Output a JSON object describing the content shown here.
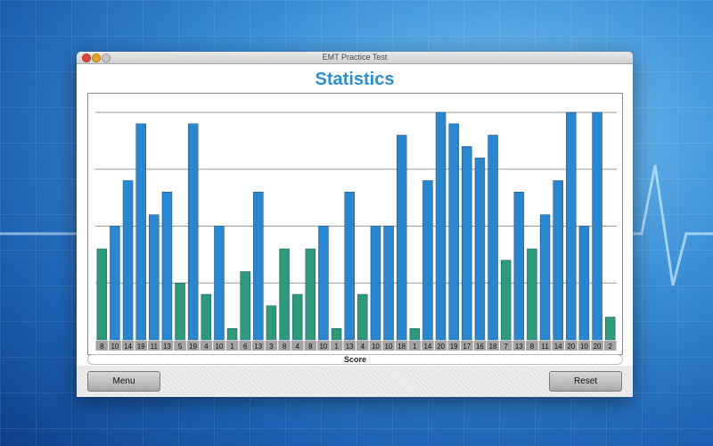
{
  "window": {
    "title": "EMT Practice Test"
  },
  "page": {
    "title": "Statistics"
  },
  "buttons": {
    "menu": "Menu",
    "reset": "Reset"
  },
  "colors": {
    "bar_high": "#2a86cf",
    "bar_low": "#2f9a7a",
    "grid": "#9a9a9a",
    "label_bg": "#a3a3a3",
    "title": "#2c8fd0"
  },
  "chart_data": {
    "type": "bar",
    "xlabel": "Score",
    "ylabel": "",
    "ylim": [
      0,
      20
    ],
    "grid": true,
    "low_threshold": 8,
    "values": [
      8,
      10,
      14,
      19,
      11,
      13,
      5,
      19,
      4,
      10,
      1,
      6,
      13,
      3,
      8,
      4,
      8,
      10,
      1,
      13,
      4,
      10,
      10,
      18,
      1,
      14,
      20,
      19,
      17,
      16,
      18,
      7,
      13,
      8,
      11,
      14,
      20,
      10,
      20,
      2
    ]
  }
}
